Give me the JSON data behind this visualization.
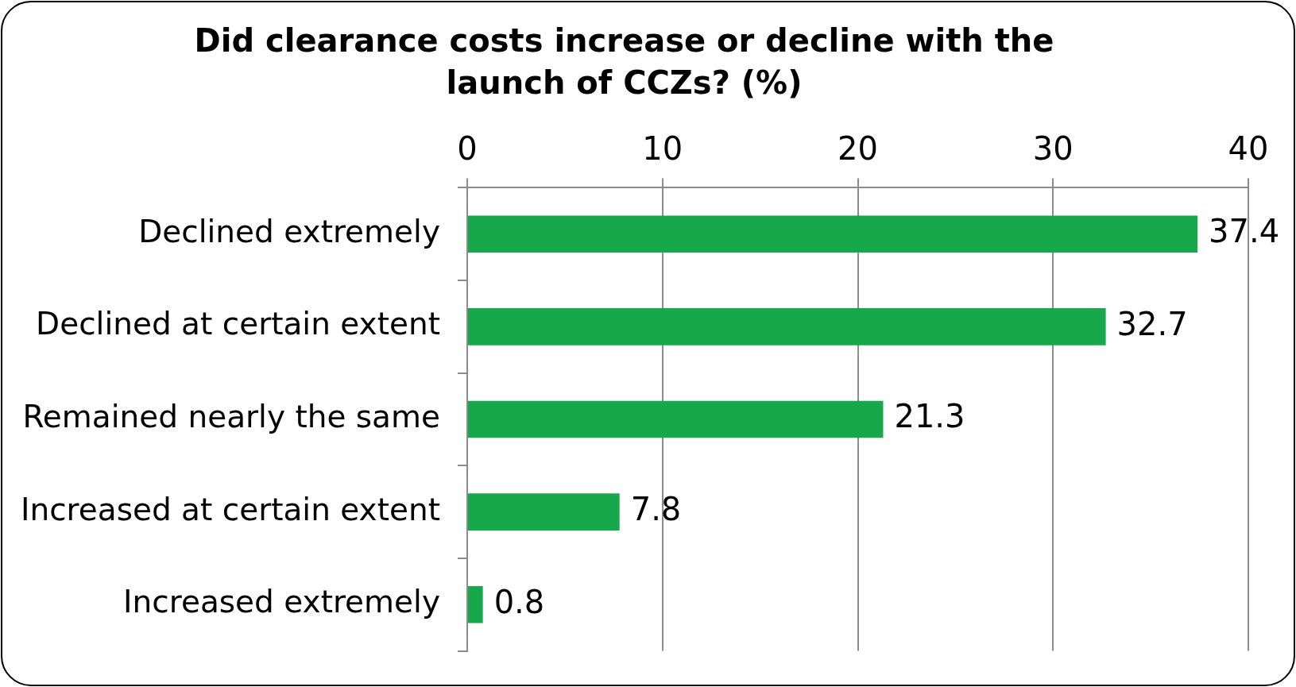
{
  "chart_data": {
    "type": "bar",
    "orientation": "horizontal",
    "title": "Did clearance costs increase or decline with the launch of CCZs? (%)",
    "categories": [
      "Declined extremely",
      "Declined at certain extent",
      "Remained nearly the same",
      "Increased at certain extent",
      "Increased extremely"
    ],
    "values": [
      37.4,
      32.7,
      21.3,
      7.8,
      0.8
    ],
    "color": "#17a84c",
    "xlim": [
      0,
      40
    ],
    "xticks": [
      0,
      10,
      20,
      30,
      40
    ],
    "grid": "x",
    "data_labels": true
  }
}
